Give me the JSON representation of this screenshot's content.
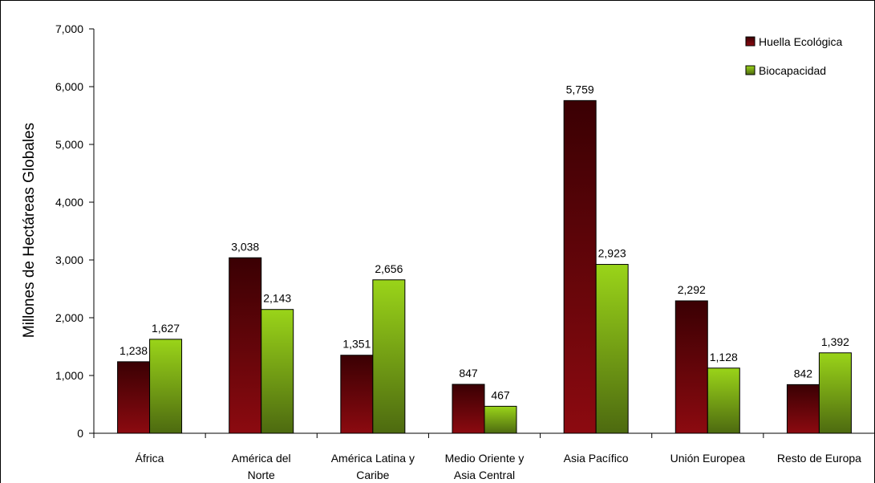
{
  "chart_data": {
    "type": "bar",
    "title": "",
    "xlabel": "",
    "ylabel": "Millones de Hectáreas Globales",
    "ylim": [
      0,
      7000
    ],
    "yticks": [
      "0",
      "1,000",
      "2,000",
      "3,000",
      "4,000",
      "5,000",
      "6,000",
      "7,000"
    ],
    "ytick_values": [
      0,
      1000,
      2000,
      3000,
      4000,
      5000,
      6000,
      7000
    ],
    "grid": false,
    "legend_position": "top-right",
    "categories": [
      [
        "África"
      ],
      [
        "América del",
        "Norte"
      ],
      [
        "América Latina y",
        "Caribe"
      ],
      [
        "Medio Oriente y",
        "Asia Central"
      ],
      [
        "Asia Pacífico"
      ],
      [
        "Unión Europea"
      ],
      [
        "Resto de Europa"
      ]
    ],
    "series": [
      {
        "name": "Huella Ecológica",
        "color_top": "#3a0003",
        "color_bottom": "#8c0a10",
        "values": [
          1238,
          3038,
          1351,
          847,
          5759,
          2292,
          842
        ],
        "labels": [
          "1,238",
          "3,038",
          "1,351",
          "847",
          "5,759",
          "2,292",
          "842"
        ]
      },
      {
        "name": "Biocapacidad",
        "color_top": "#9ad419",
        "color_bottom": "#4d6a10",
        "values": [
          1627,
          2143,
          2656,
          467,
          2923,
          1128,
          1392
        ],
        "labels": [
          "1,627",
          "2,143",
          "2,656",
          "467",
          "2,923",
          "1,128",
          "1,392"
        ]
      }
    ]
  }
}
